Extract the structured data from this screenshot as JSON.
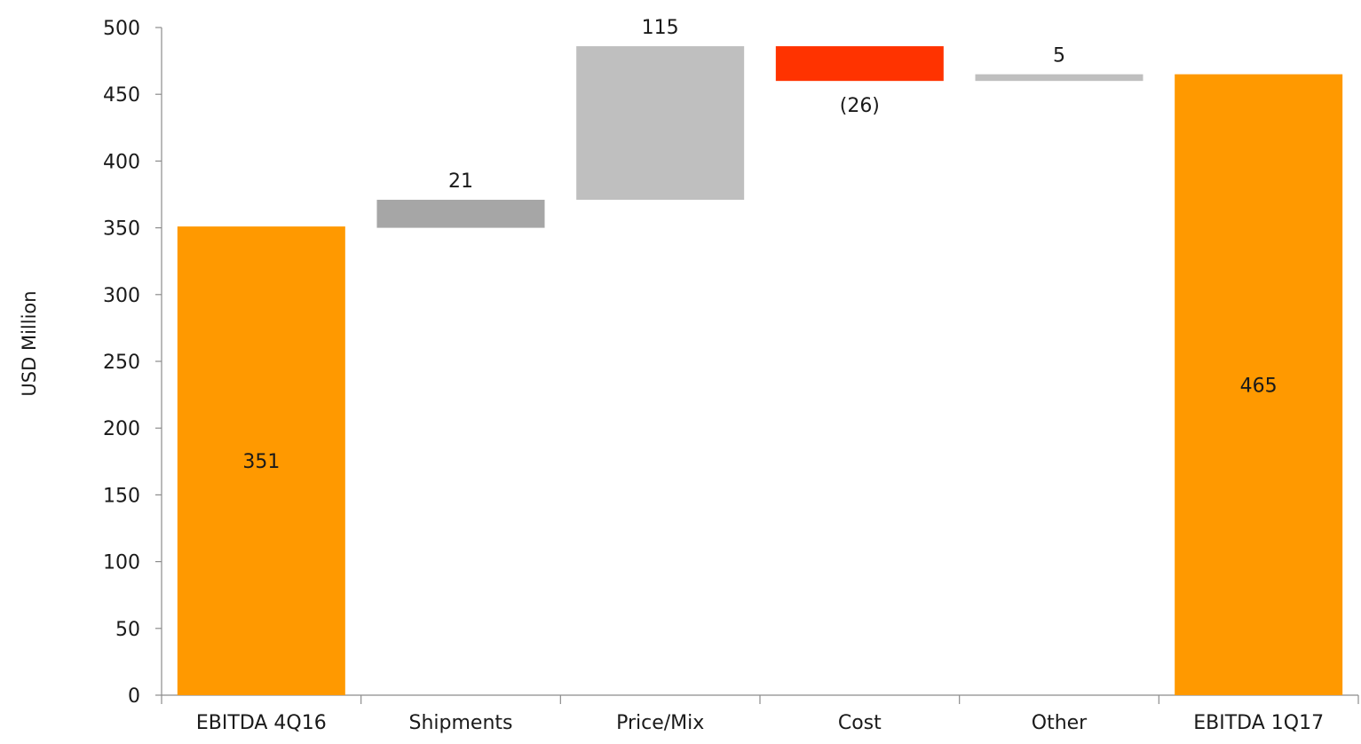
{
  "chart_data": {
    "type": "waterfall",
    "ylabel": "USD Million",
    "xlabel": "",
    "ylim": [
      0,
      500
    ],
    "yticks": [
      0,
      50,
      100,
      150,
      200,
      250,
      300,
      350,
      400,
      450,
      500
    ],
    "grid": false,
    "legend": "none",
    "categories": [
      "EBITDA  4Q16",
      "Shipments",
      "Price/Mix",
      "Cost",
      "Other",
      "EBITDA  1Q17"
    ],
    "bars": [
      {
        "category": "EBITDA  4Q16",
        "kind": "total",
        "start": 0,
        "end": 351,
        "label": "351",
        "label_position": "inside",
        "color": "#FF9900"
      },
      {
        "category": "Shipments",
        "kind": "delta",
        "start": 350,
        "end": 371,
        "label": "21",
        "label_position": "above",
        "color": "#A6A6A6"
      },
      {
        "category": "Price/Mix",
        "kind": "delta",
        "start": 371,
        "end": 486,
        "label": "115",
        "label_position": "above",
        "color": "#BFBFBF"
      },
      {
        "category": "Cost",
        "kind": "delta",
        "start": 486,
        "end": 460,
        "label": "(26)",
        "label_position": "below",
        "color": "#FF3300"
      },
      {
        "category": "Other",
        "kind": "delta",
        "start": 460,
        "end": 465,
        "label": "5",
        "label_position": "above",
        "color": "#BFBFBF"
      },
      {
        "category": "EBITDA  1Q17",
        "kind": "total",
        "start": 0,
        "end": 465,
        "label": "465",
        "label_position": "inside",
        "color": "#FF9900"
      }
    ]
  }
}
